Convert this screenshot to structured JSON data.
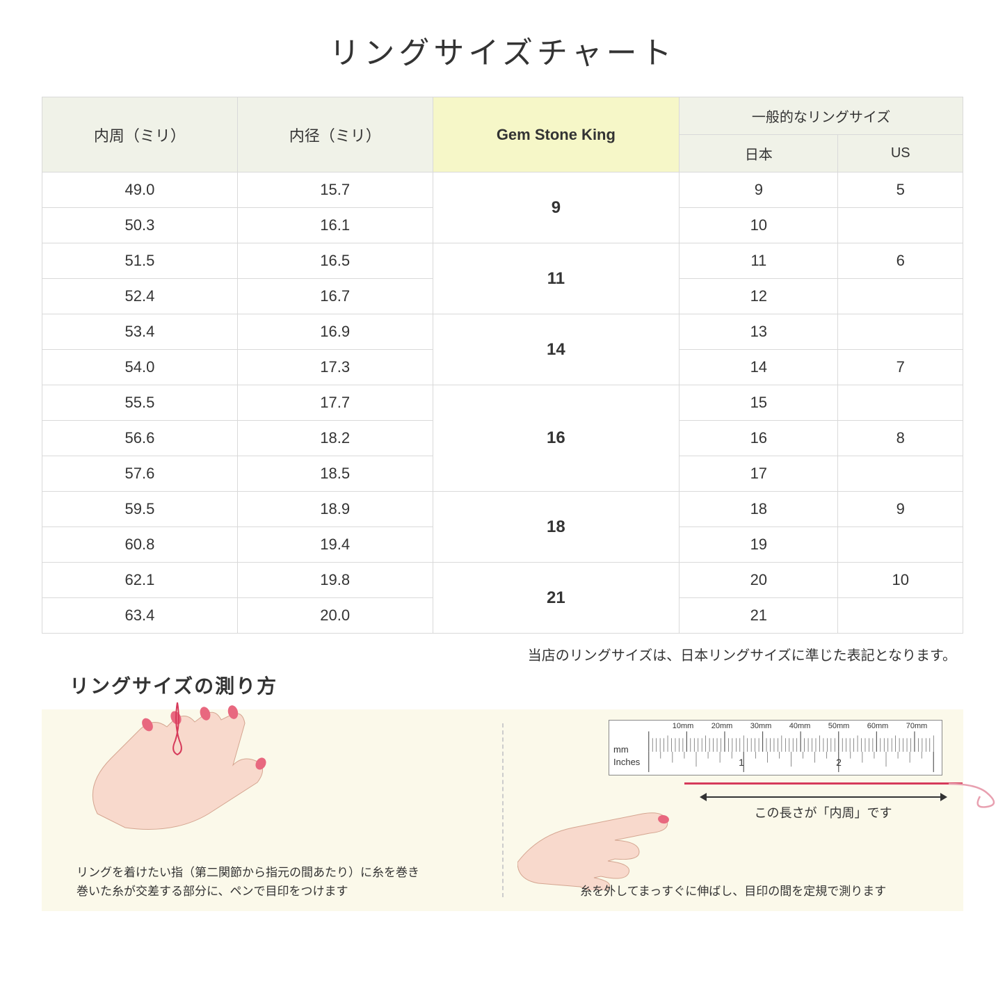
{
  "title": "リングサイズチャート",
  "note": "当店のリングサイズは、日本リングサイズに準じた表記となります。",
  "subtitle": "リングサイズの測り方",
  "table": {
    "headers": {
      "circumference": "内周（ミリ）",
      "diameter": "内径（ミリ）",
      "gsk": "Gem Stone King",
      "general_group": "一般的なリングサイズ",
      "japan": "日本",
      "us": "US"
    },
    "header_bg": "#f0f2e8",
    "highlight_bg": "#f6f7c8",
    "border_color": "#d9d9d9",
    "groups": [
      {
        "gsk": "9",
        "rows": [
          {
            "c": "49.0",
            "d": "15.7",
            "jp": "9",
            "us": "5"
          },
          {
            "c": "50.3",
            "d": "16.1",
            "jp": "10",
            "us": ""
          }
        ]
      },
      {
        "gsk": "11",
        "rows": [
          {
            "c": "51.5",
            "d": "16.5",
            "jp": "11",
            "us": "6"
          },
          {
            "c": "52.4",
            "d": "16.7",
            "jp": "12",
            "us": ""
          }
        ]
      },
      {
        "gsk": "14",
        "rows": [
          {
            "c": "53.4",
            "d": "16.9",
            "jp": "13",
            "us": ""
          },
          {
            "c": "54.0",
            "d": "17.3",
            "jp": "14",
            "us": "7"
          }
        ]
      },
      {
        "gsk": "16",
        "rows": [
          {
            "c": "55.5",
            "d": "17.7",
            "jp": "15",
            "us": ""
          },
          {
            "c": "56.6",
            "d": "18.2",
            "jp": "16",
            "us": "8"
          },
          {
            "c": "57.6",
            "d": "18.5",
            "jp": "17",
            "us": ""
          }
        ]
      },
      {
        "gsk": "18",
        "rows": [
          {
            "c": "59.5",
            "d": "18.9",
            "jp": "18",
            "us": "9"
          },
          {
            "c": "60.8",
            "d": "19.4",
            "jp": "19",
            "us": ""
          }
        ]
      },
      {
        "gsk": "21",
        "rows": [
          {
            "c": "62.1",
            "d": "19.8",
            "jp": "20",
            "us": "10"
          },
          {
            "c": "63.4",
            "d": "20.0",
            "jp": "21",
            "us": ""
          }
        ]
      }
    ]
  },
  "howto": {
    "panel_bg": "#fbf9ea",
    "left_caption_l1": "リングを着けたい指（第二関節から指元の間あたり）に糸を巻き",
    "left_caption_l2": "巻いた糸が交差する部分に、ペンで目印をつけます",
    "right_caption": "糸を外してまっすぐに伸ばし、目印の間を定規で測ります",
    "arrow_label": "この長さが「内周」です",
    "ruler": {
      "mm_label": "mm",
      "in_label": "Inches",
      "mm_marks": [
        "10mm",
        "20mm",
        "30mm",
        "40mm",
        "50mm",
        "60mm",
        "70mm"
      ],
      "inch_marks": [
        "1",
        "2"
      ]
    },
    "skin_color": "#f8d9cc",
    "nail_color": "#e8687f",
    "thread_color": "#d63a5a"
  }
}
